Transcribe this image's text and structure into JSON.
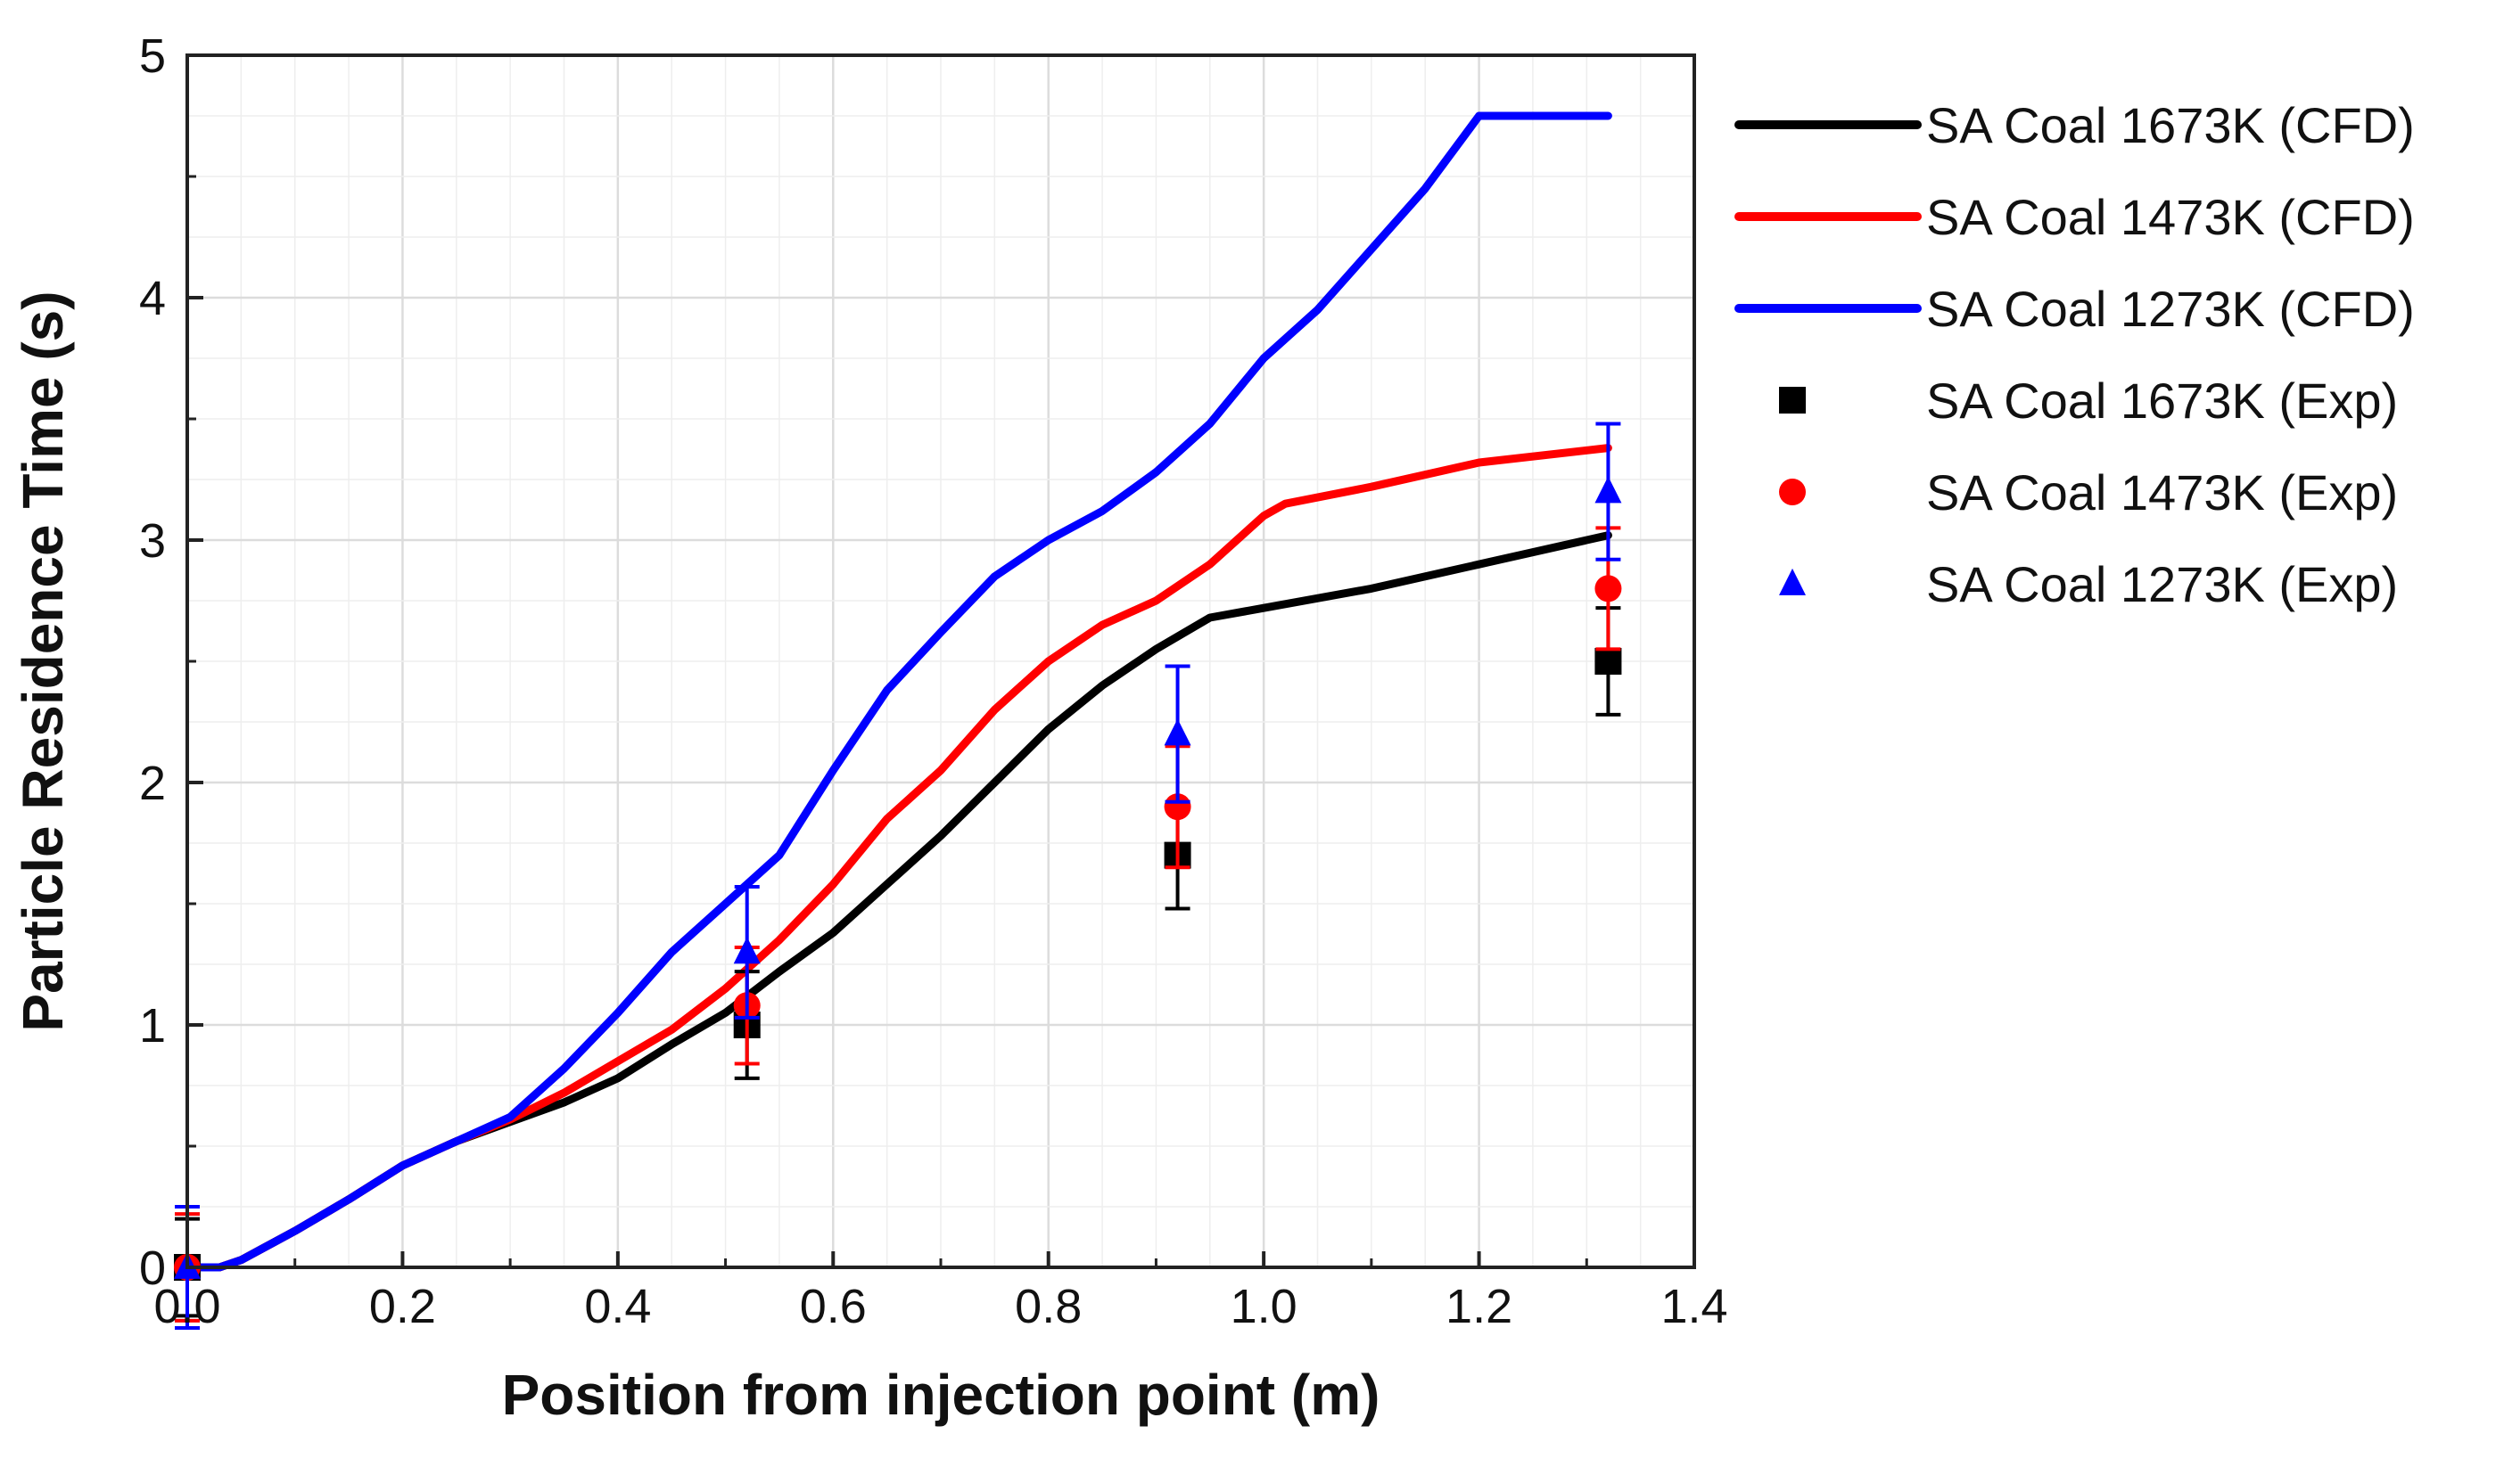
{
  "chart_data": {
    "type": "line",
    "title": "",
    "xlabel": "Position from injection point (m)",
    "ylabel": "Particle Residence Time (s)",
    "xlim": [
      0.0,
      1.4
    ],
    "ylim": [
      0,
      5
    ],
    "xticks": [
      "0.0",
      "0.2",
      "0.4",
      "0.6",
      "0.8",
      "1.0",
      "1.2",
      "1.4"
    ],
    "xtick_values": [
      0.0,
      0.2,
      0.4,
      0.6,
      0.8,
      1.0,
      1.2,
      1.4
    ],
    "yticks": [
      "0",
      "1",
      "2",
      "3",
      "4",
      "5"
    ],
    "ytick_values": [
      0,
      1,
      2,
      3,
      4,
      5
    ],
    "grid": true,
    "legend_position": "outside-right",
    "series": [
      {
        "name": "SA Coal 1673K (CFD)",
        "kind": "line",
        "color": "#000000",
        "x": [
          0.0,
          0.03,
          0.05,
          0.1,
          0.15,
          0.2,
          0.25,
          0.3,
          0.35,
          0.4,
          0.45,
          0.5,
          0.55,
          0.6,
          0.65,
          0.7,
          0.75,
          0.8,
          0.85,
          0.9,
          0.95,
          1.0,
          1.1,
          1.2,
          1.32
        ],
        "y": [
          0.0,
          0.0,
          0.03,
          0.15,
          0.28,
          0.42,
          0.52,
          0.6,
          0.68,
          0.78,
          0.92,
          1.05,
          1.22,
          1.38,
          1.58,
          1.78,
          2.0,
          2.22,
          2.4,
          2.55,
          2.68,
          2.72,
          2.8,
          2.9,
          3.02
        ]
      },
      {
        "name": "SA Coal 1473K (CFD)",
        "kind": "line",
        "color": "#ff0000",
        "x": [
          0.0,
          0.03,
          0.05,
          0.1,
          0.15,
          0.2,
          0.25,
          0.3,
          0.35,
          0.4,
          0.45,
          0.5,
          0.55,
          0.6,
          0.65,
          0.7,
          0.75,
          0.8,
          0.85,
          0.9,
          0.95,
          1.0,
          1.02,
          1.1,
          1.2,
          1.32
        ],
        "y": [
          0.0,
          0.0,
          0.03,
          0.15,
          0.28,
          0.42,
          0.52,
          0.61,
          0.72,
          0.85,
          0.98,
          1.15,
          1.35,
          1.58,
          1.85,
          2.05,
          2.3,
          2.5,
          2.65,
          2.75,
          2.9,
          3.1,
          3.15,
          3.22,
          3.32,
          3.38
        ]
      },
      {
        "name": "SA Coal 1273K (CFD)",
        "kind": "line",
        "color": "#0000ff",
        "x": [
          0.0,
          0.03,
          0.05,
          0.1,
          0.15,
          0.2,
          0.25,
          0.3,
          0.35,
          0.4,
          0.45,
          0.5,
          0.55,
          0.6,
          0.65,
          0.7,
          0.75,
          0.8,
          0.85,
          0.9,
          0.95,
          1.0,
          1.05,
          1.1,
          1.15,
          1.2,
          1.32
        ],
        "y": [
          0.0,
          0.0,
          0.03,
          0.15,
          0.28,
          0.42,
          0.52,
          0.62,
          0.82,
          1.05,
          1.3,
          1.5,
          1.7,
          2.05,
          2.38,
          2.62,
          2.85,
          3.0,
          3.12,
          3.28,
          3.48,
          3.75,
          3.95,
          4.2,
          4.45,
          4.75,
          4.75
        ]
      },
      {
        "name": "SA Coal 1673K (Exp)",
        "kind": "points",
        "marker": "square",
        "color": "#000000",
        "x": [
          0.0,
          0.52,
          0.92,
          1.32
        ],
        "y": [
          0.0,
          1.0,
          1.7,
          2.5
        ],
        "err": [
          0.2,
          0.22,
          0.22,
          0.22
        ]
      },
      {
        "name": "SA Coal 1473K (Exp)",
        "kind": "points",
        "marker": "circle",
        "color": "#ff0000",
        "x": [
          0.0,
          0.52,
          0.92,
          1.32
        ],
        "y": [
          0.0,
          1.08,
          1.9,
          2.8
        ],
        "err": [
          0.22,
          0.24,
          0.25,
          0.25
        ]
      },
      {
        "name": "SA Coal 1273K (Exp)",
        "kind": "points",
        "marker": "triangle",
        "color": "#0000ff",
        "x": [
          0.0,
          0.52,
          0.92,
          1.32
        ],
        "y": [
          0.0,
          1.3,
          2.2,
          3.2
        ],
        "err": [
          0.25,
          0.27,
          0.28,
          0.28
        ]
      }
    ]
  }
}
